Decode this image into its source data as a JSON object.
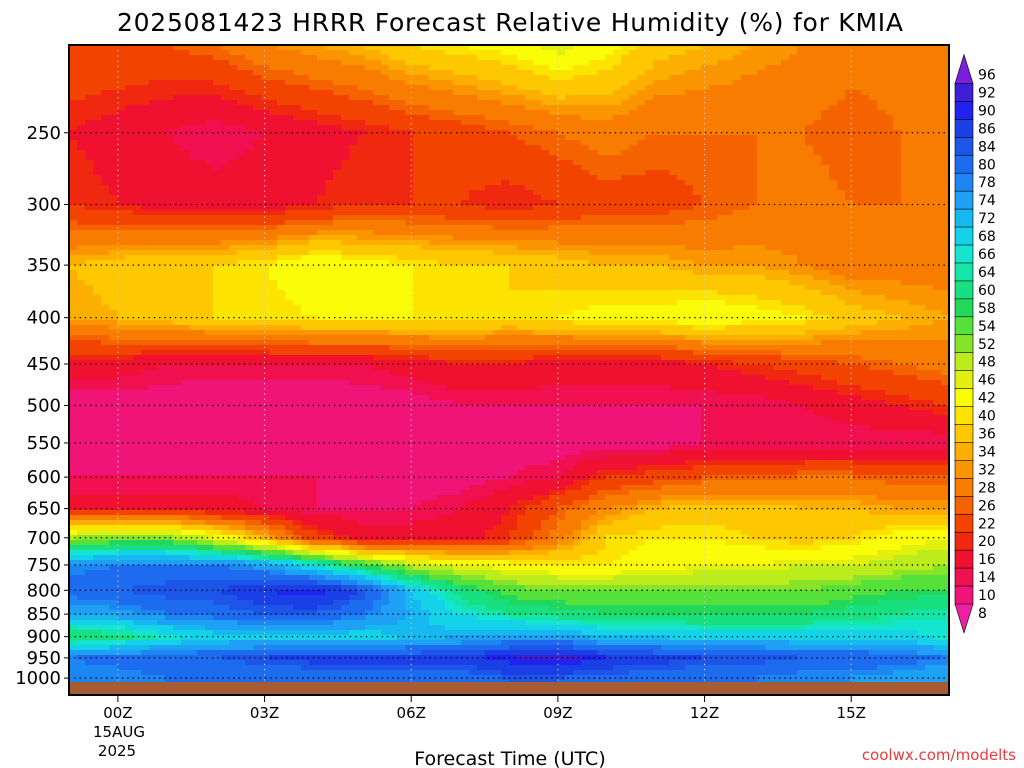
{
  "chart_data": {
    "type": "heatmap",
    "title": "2025081423 HRRR Forecast Relative Humidity (%) for KMIA",
    "xlabel": "Forecast Time (UTC)",
    "ylabel": "",
    "credit": "coolwx.com/modelts",
    "x_ticks": [
      "00Z",
      "03Z",
      "06Z",
      "09Z",
      "12Z",
      "15Z"
    ],
    "x_tick_hours": [
      0,
      3,
      6,
      9,
      12,
      15
    ],
    "x_date_line1": "15AUG",
    "x_date_line2": "2025",
    "xlim": [
      -1,
      17
    ],
    "y_ticks": [
      250,
      300,
      350,
      400,
      450,
      500,
      550,
      600,
      650,
      700,
      750,
      800,
      850,
      900,
      950,
      1000
    ],
    "ylim": [
      1010,
      200
    ],
    "y_scale": "log",
    "grid": true,
    "colorbar_labels": [
      96,
      92,
      90,
      86,
      84,
      80,
      78,
      74,
      72,
      68,
      66,
      64,
      60,
      58,
      54,
      52,
      48,
      46,
      42,
      40,
      36,
      34,
      32,
      28,
      26,
      22,
      20,
      16,
      14,
      10,
      8
    ],
    "colorbar_colors": [
      "#7a1fe0",
      "#3d1fd8",
      "#2222ee",
      "#1b3fe6",
      "#1c55e8",
      "#1d6cf0",
      "#1c86f2",
      "#1ea0f4",
      "#16b8f0",
      "#14d2e8",
      "#14e4d0",
      "#14e6aa",
      "#18e080",
      "#22d85c",
      "#55e03a",
      "#88e428",
      "#bdec1c",
      "#e2f010",
      "#fafc08",
      "#fde400",
      "#fdc800",
      "#fcaf00",
      "#fa9500",
      "#f87c00",
      "#f56200",
      "#f24400",
      "#f02810",
      "#f01030",
      "#f01050",
      "#f01478",
      "#f01ea0"
    ],
    "hours": [
      -1,
      0,
      1,
      2,
      3,
      4,
      5,
      6,
      7,
      8,
      9,
      10,
      11,
      12,
      13,
      14,
      15,
      16,
      17
    ],
    "levels": [
      200,
      250,
      300,
      350,
      400,
      450,
      500,
      550,
      600,
      650,
      700,
      750,
      800,
      850,
      900,
      950,
      1000
    ],
    "rh": [
      [
        26,
        26,
        26,
        28,
        32,
        34,
        36,
        40,
        42,
        44,
        48,
        44,
        38,
        36,
        34,
        32,
        30,
        30,
        30
      ],
      [
        20,
        18,
        16,
        14,
        16,
        18,
        20,
        22,
        24,
        26,
        28,
        30,
        28,
        28,
        28,
        28,
        26,
        28,
        28
      ],
      [
        22,
        20,
        18,
        18,
        18,
        20,
        22,
        22,
        22,
        20,
        22,
        24,
        24,
        26,
        28,
        30,
        28,
        28,
        28
      ],
      [
        36,
        38,
        40,
        40,
        42,
        46,
        44,
        42,
        40,
        40,
        38,
        36,
        36,
        34,
        34,
        32,
        30,
        30,
        30
      ],
      [
        34,
        36,
        38,
        40,
        40,
        42,
        42,
        42,
        42,
        40,
        42,
        44,
        44,
        46,
        44,
        42,
        38,
        36,
        34
      ],
      [
        18,
        18,
        16,
        16,
        16,
        16,
        16,
        18,
        20,
        20,
        18,
        18,
        18,
        20,
        22,
        24,
        26,
        28,
        30
      ],
      [
        12,
        12,
        12,
        10,
        10,
        10,
        12,
        12,
        14,
        14,
        14,
        14,
        14,
        14,
        14,
        16,
        18,
        20,
        22
      ],
      [
        12,
        12,
        12,
        10,
        10,
        10,
        10,
        10,
        12,
        12,
        12,
        12,
        12,
        14,
        14,
        14,
        14,
        14,
        14
      ],
      [
        14,
        14,
        14,
        14,
        14,
        14,
        12,
        12,
        12,
        14,
        16,
        22,
        24,
        26,
        26,
        28,
        28,
        26,
        26
      ],
      [
        18,
        18,
        18,
        18,
        16,
        14,
        14,
        14,
        16,
        20,
        26,
        32,
        36,
        38,
        38,
        36,
        36,
        34,
        34
      ],
      [
        52,
        54,
        54,
        46,
        36,
        24,
        18,
        18,
        18,
        22,
        30,
        40,
        42,
        42,
        40,
        38,
        40,
        44,
        46
      ],
      [
        78,
        80,
        80,
        80,
        76,
        68,
        58,
        50,
        46,
        44,
        42,
        42,
        44,
        46,
        46,
        48,
        48,
        50,
        52
      ],
      [
        82,
        84,
        86,
        86,
        90,
        92,
        86,
        72,
        62,
        56,
        54,
        54,
        54,
        54,
        54,
        54,
        56,
        58,
        58
      ],
      [
        74,
        76,
        80,
        82,
        84,
        84,
        80,
        74,
        68,
        64,
        62,
        60,
        60,
        60,
        60,
        60,
        62,
        64,
        66
      ],
      [
        60,
        62,
        66,
        70,
        70,
        70,
        70,
        72,
        74,
        76,
        76,
        72,
        72,
        70,
        70,
        70,
        70,
        70,
        66
      ],
      [
        80,
        82,
        84,
        84,
        86,
        88,
        88,
        88,
        88,
        92,
        94,
        90,
        88,
        86,
        86,
        84,
        84,
        82,
        80
      ],
      [
        78,
        78,
        80,
        80,
        80,
        80,
        80,
        80,
        82,
        84,
        84,
        82,
        82,
        80,
        80,
        78,
        78,
        76,
        74
      ]
    ]
  }
}
